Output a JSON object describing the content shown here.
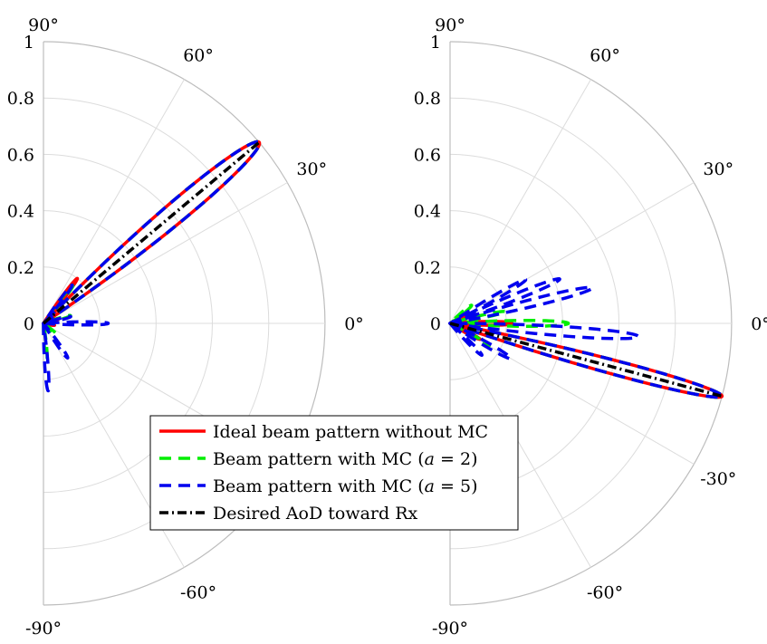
{
  "chart_data": [
    {
      "type": "polar-line",
      "id": "left",
      "theta_range_deg": [
        -90,
        90
      ],
      "r_range": [
        0,
        1
      ],
      "r_ticks": [
        "0",
        "0.2",
        "0.4",
        "0.6",
        "0.8",
        "1"
      ],
      "theta_ticks": [
        {
          "deg": 90,
          "label": "90°"
        },
        {
          "deg": 60,
          "label": "60°"
        },
        {
          "deg": 30,
          "label": "30°"
        },
        {
          "deg": 0,
          "label": "0°"
        },
        {
          "deg": -60,
          "label": "-60°"
        },
        {
          "deg": -90,
          "label": "-90°"
        }
      ],
      "series": [
        {
          "name": "Ideal beam pattern without MC",
          "color": "#ff0000",
          "dash": "solid",
          "lobes": [
            {
              "center_deg": 40,
              "width_deg": 6,
              "peak": 1.0
            },
            {
              "center_deg": 53,
              "width_deg": 4,
              "peak": 0.2
            },
            {
              "center_deg": 17,
              "width_deg": 5,
              "peak": 0.06
            },
            {
              "center_deg": -10,
              "width_deg": 6,
              "peak": 0.04
            }
          ]
        },
        {
          "name": "Beam pattern with MC (a = 2)",
          "color": "#00ee00",
          "dash": "dashed",
          "lobes": [
            {
              "center_deg": 40,
              "width_deg": 6,
              "peak": 1.0
            },
            {
              "center_deg": 52,
              "width_deg": 4,
              "peak": 0.17
            },
            {
              "center_deg": 16,
              "width_deg": 5,
              "peak": 0.1
            },
            {
              "center_deg": -40,
              "width_deg": 6,
              "peak": 0.06
            },
            {
              "center_deg": -85,
              "width_deg": 5,
              "peak": 0.13
            }
          ]
        },
        {
          "name": "Beam pattern with MC (a = 5)",
          "color": "#0000ee",
          "dash": "dashed",
          "lobes": [
            {
              "center_deg": 40,
              "width_deg": 6,
              "peak": 1.0
            },
            {
              "center_deg": 53,
              "width_deg": 4,
              "peak": 0.17
            },
            {
              "center_deg": 14,
              "width_deg": 5,
              "peak": 0.1
            },
            {
              "center_deg": 0,
              "width_deg": 4,
              "peak": 0.23
            },
            {
              "center_deg": -55,
              "width_deg": 5,
              "peak": 0.15
            },
            {
              "center_deg": -86,
              "width_deg": 4,
              "peak": 0.24
            }
          ]
        },
        {
          "name": "Desired AoD toward Rx",
          "color": "#000000",
          "dash": "dashdot",
          "ray": {
            "theta_deg": 40,
            "r": 1.0
          }
        }
      ]
    },
    {
      "type": "polar-line",
      "id": "right",
      "theta_range_deg": [
        -90,
        90
      ],
      "r_range": [
        0,
        1
      ],
      "r_ticks": [
        "0",
        "0.2",
        "0.4",
        "0.6",
        "0.8",
        "1"
      ],
      "theta_ticks": [
        {
          "deg": 90,
          "label": "90°"
        },
        {
          "deg": 60,
          "label": "60°"
        },
        {
          "deg": 30,
          "label": "30°"
        },
        {
          "deg": 0,
          "label": "0°"
        },
        {
          "deg": -30,
          "label": "-30°"
        },
        {
          "deg": -60,
          "label": "-60°"
        },
        {
          "deg": -90,
          "label": "-90°"
        }
      ],
      "series": [
        {
          "name": "Ideal beam pattern without MC",
          "color": "#ff0000",
          "dash": "solid",
          "lobes": [
            {
              "center_deg": -15,
              "width_deg": 4,
              "peak": 1.0
            },
            {
              "center_deg": 0,
              "width_deg": 5,
              "peak": 0.22
            },
            {
              "center_deg": -28,
              "width_deg": 5,
              "peak": 0.12
            },
            {
              "center_deg": 25,
              "width_deg": 6,
              "peak": 0.06
            }
          ]
        },
        {
          "name": "Beam pattern with MC (a = 2)",
          "color": "#00ee00",
          "dash": "dashed",
          "lobes": [
            {
              "center_deg": -15,
              "width_deg": 4,
              "peak": 1.0
            },
            {
              "center_deg": 0,
              "width_deg": 4,
              "peak": 0.42
            },
            {
              "center_deg": 12,
              "width_deg": 4,
              "peak": 0.2
            },
            {
              "center_deg": -30,
              "width_deg": 5,
              "peak": 0.16
            },
            {
              "center_deg": 40,
              "width_deg": 6,
              "peak": 0.1
            }
          ]
        },
        {
          "name": "Beam pattern with MC (a = 5)",
          "color": "#0000ee",
          "dash": "dashed",
          "lobes": [
            {
              "center_deg": -15,
              "width_deg": 4,
              "peak": 1.0
            },
            {
              "center_deg": 14,
              "width_deg": 4,
              "peak": 0.52
            },
            {
              "center_deg": 22,
              "width_deg": 4,
              "peak": 0.42
            },
            {
              "center_deg": 30,
              "width_deg": 4,
              "peak": 0.31
            },
            {
              "center_deg": -4,
              "width_deg": 4,
              "peak": 0.67
            },
            {
              "center_deg": -30,
              "width_deg": 5,
              "peak": 0.25
            },
            {
              "center_deg": -45,
              "width_deg": 5,
              "peak": 0.16
            }
          ]
        },
        {
          "name": "Desired AoD toward Rx",
          "color": "#000000",
          "dash": "dashdot",
          "ray": {
            "theta_deg": -15,
            "r": 1.0
          }
        }
      ]
    }
  ],
  "legend": {
    "entries": [
      {
        "label": "Ideal beam pattern without MC",
        "color": "#ff0000",
        "dash": "solid"
      },
      {
        "label": "Beam pattern with MC (a = 2)",
        "color": "#00ee00",
        "dash": "dashed"
      },
      {
        "label": "Beam pattern with MC (a = 5)",
        "color": "#0000ee",
        "dash": "dashed"
      },
      {
        "label": "Desired AoD toward Rx",
        "color": "#000000",
        "dash": "dashdot"
      }
    ]
  }
}
